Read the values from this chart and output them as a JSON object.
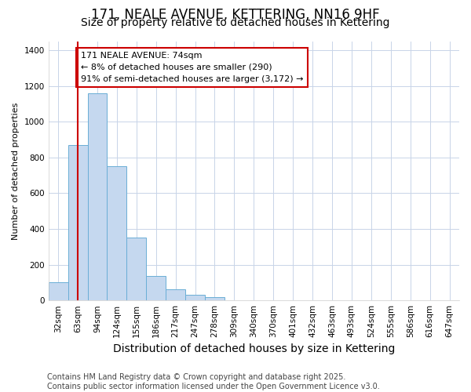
{
  "title": "171, NEALE AVENUE, KETTERING, NN16 9HF",
  "subtitle": "Size of property relative to detached houses in Kettering",
  "xlabel": "Distribution of detached houses by size in Kettering",
  "ylabel": "Number of detached properties",
  "categories": [
    "32sqm",
    "63sqm",
    "94sqm",
    "124sqm",
    "155sqm",
    "186sqm",
    "217sqm",
    "247sqm",
    "278sqm",
    "309sqm",
    "340sqm",
    "370sqm",
    "401sqm",
    "432sqm",
    "463sqm",
    "493sqm",
    "524sqm",
    "555sqm",
    "586sqm",
    "616sqm",
    "647sqm"
  ],
  "values": [
    100,
    870,
    1160,
    750,
    350,
    135,
    60,
    30,
    18,
    0,
    0,
    0,
    0,
    0,
    0,
    0,
    0,
    0,
    0,
    0,
    0
  ],
  "bar_color": "#c5d8ef",
  "bar_edge_color": "#6aaed6",
  "vline_x_index": 1,
  "vline_color": "#cc0000",
  "annotation_title": "171 NEALE AVENUE: 74sqm",
  "annotation_line2": "← 8% of detached houses are smaller (290)",
  "annotation_line3": "91% of semi-detached houses are larger (3,172) →",
  "annotation_box_facecolor": "#ffffff",
  "annotation_box_edgecolor": "#cc0000",
  "ylim": [
    0,
    1450
  ],
  "yticks": [
    0,
    200,
    400,
    600,
    800,
    1000,
    1200,
    1400
  ],
  "background_color": "#ffffff",
  "plot_background": "#ffffff",
  "grid_color": "#c8d4e8",
  "footer": "Contains HM Land Registry data © Crown copyright and database right 2025.\nContains public sector information licensed under the Open Government Licence v3.0.",
  "title_fontsize": 12,
  "subtitle_fontsize": 10,
  "xlabel_fontsize": 10,
  "ylabel_fontsize": 8,
  "tick_fontsize": 7.5,
  "annotation_fontsize": 8,
  "footer_fontsize": 7
}
